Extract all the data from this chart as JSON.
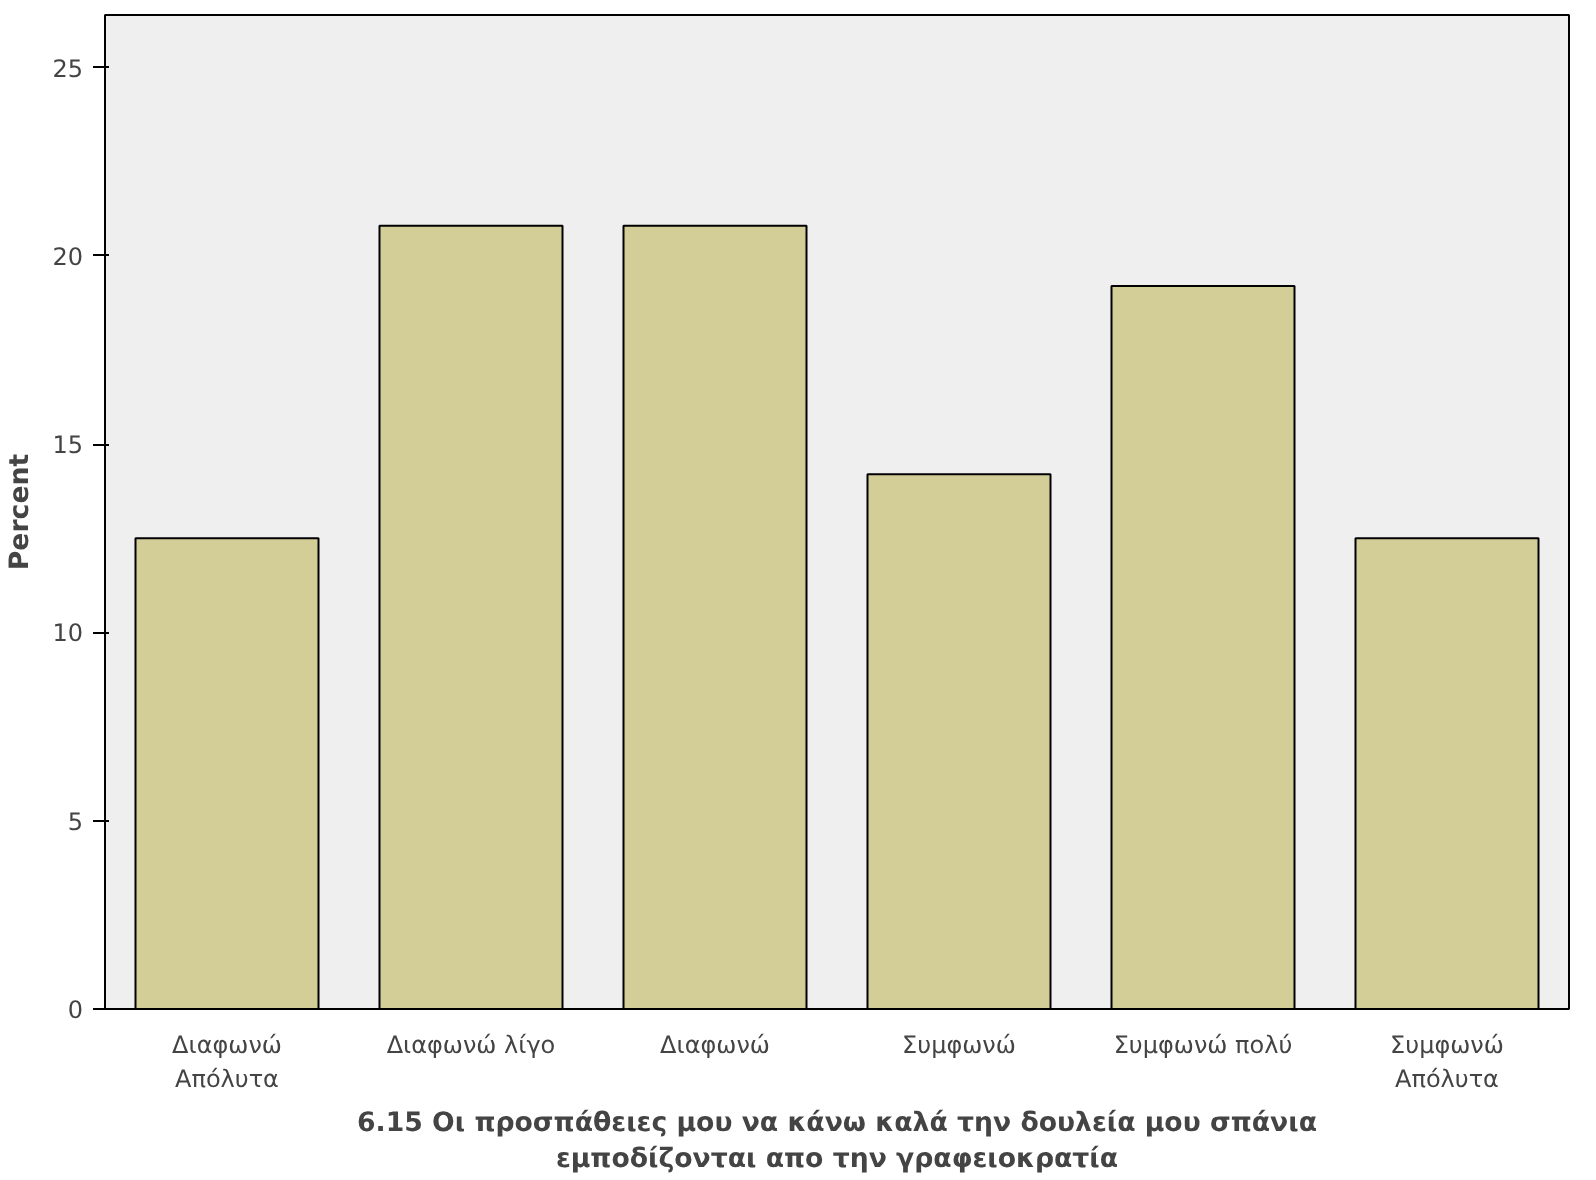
{
  "chart_data": {
    "type": "bar",
    "categories": [
      "Διαφωνώ Απόλυτα",
      "Διαφωνώ λίγο",
      "Διαφωνώ",
      "Συμφωνώ",
      "Συμφωνώ πολύ",
      "Συμφωνώ Απόλυτα"
    ],
    "values": [
      12.5,
      20.8,
      20.8,
      14.2,
      19.2,
      12.5
    ],
    "color": "#d3ce97",
    "xlabel": "6.15 Οι προσπάθειες μου να κάνω καλά την δουλεία μου σπάνια εμποδίζονται απο την γραφειοκρατία",
    "ylabel": "Percent",
    "ylim": [
      0,
      26.4
    ],
    "yticks": [
      0,
      5,
      10,
      15,
      20,
      25
    ],
    "grid": false
  }
}
